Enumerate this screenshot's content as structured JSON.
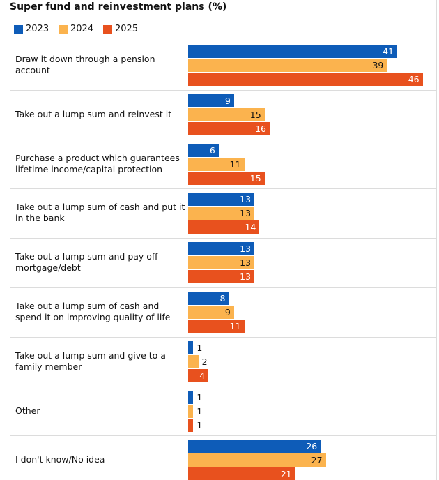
{
  "chart_data": {
    "type": "bar",
    "orientation": "horizontal",
    "title": "Super fund and reinvestment plans (%)",
    "categories": [
      "Draw it down through a pension account",
      "Take out a lump sum and reinvest it",
      "Purchase a product which guarantees lifetime income/capital protection",
      "Take out a lump sum of cash and put it in the bank",
      "Take out a lump sum and pay off mortgage/debt",
      "Take out a lump sum of cash and spend it on improving quality of life",
      "Take out a lump sum and give to a family member",
      "Other",
      "I don't know/No idea"
    ],
    "series": [
      {
        "name": "2023",
        "color": "#0e5cb8",
        "values": [
          41,
          9,
          6,
          13,
          13,
          8,
          1,
          1,
          26
        ]
      },
      {
        "name": "2024",
        "color": "#fbb34e",
        "values": [
          39,
          15,
          11,
          13,
          13,
          9,
          2,
          1,
          27
        ]
      },
      {
        "name": "2025",
        "color": "#e8511e",
        "values": [
          46,
          16,
          15,
          14,
          13,
          11,
          4,
          1,
          21
        ]
      }
    ]
  }
}
